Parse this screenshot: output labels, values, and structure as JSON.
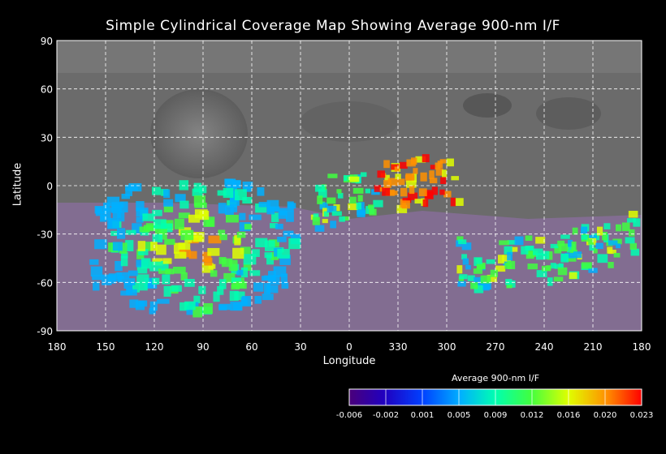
{
  "title": "Simple Cylindrical Coverage Map Showing Average 900-nm I/F",
  "chart_data": {
    "type": "map",
    "title": "Simple Cylindrical Coverage Map Showing Average 900-nm I/F",
    "xlabel": "Longitude",
    "ylabel": "Latitude",
    "x_tick_labels": [
      "180",
      "150",
      "120",
      "90",
      "60",
      "30",
      "0",
      "330",
      "300",
      "270",
      "240",
      "210",
      "180"
    ],
    "y_tick_labels": [
      "90",
      "60",
      "30",
      "0",
      "-30",
      "-60",
      "-90"
    ],
    "y_ticks": [
      90,
      60,
      30,
      0,
      -30,
      -60,
      -90
    ],
    "ylim": [
      -90,
      90
    ],
    "grid": true,
    "colorbar": {
      "title": "Average 900-nm I/F",
      "tick_labels": [
        "-0.006",
        "-0.002",
        "0.001",
        "0.005",
        "0.009",
        "0.012",
        "0.016",
        "0.020",
        "0.023"
      ],
      "colors": [
        "#4a007a",
        "#2000c0",
        "#0040ff",
        "#00b0ff",
        "#00ffb0",
        "#40ff40",
        "#e0ff00",
        "#ff9000",
        "#ff0000"
      ]
    }
  }
}
